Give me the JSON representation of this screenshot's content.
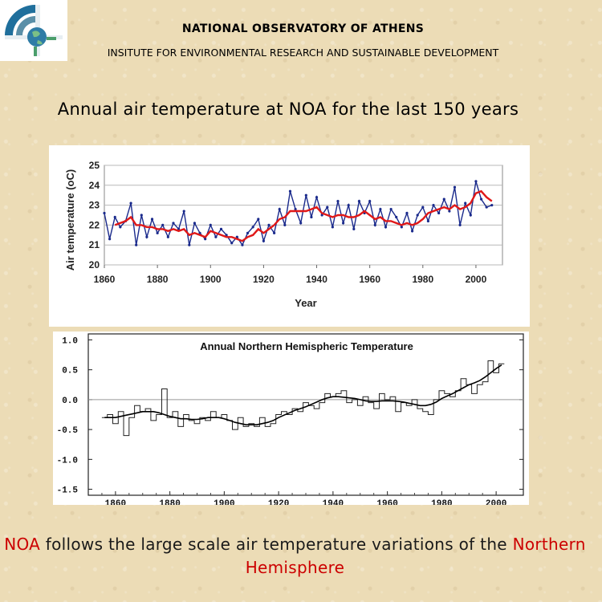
{
  "header": {
    "org": "NATIONAL OBSERVATORY OF ATHENS",
    "institute": "INSITUTE FOR ENVIRONMENTAL RESEARCH AND SUSTAINABLE DEVELOPMENT"
  },
  "slide_title": "Annual air temperature at NOA for the last 150 years",
  "caption": {
    "part1": "NOA",
    "part2": " follows the large scale air temperature variations of the ",
    "part3": "Northern Hemisphere"
  },
  "colors": {
    "noa_raw": "#1a2a8c",
    "noa_smooth": "#e01818",
    "accent_red": "#cc0000",
    "logo_blue": "#1f6f9c",
    "logo_green": "#4a9e6b"
  },
  "chart_data": [
    {
      "type": "line",
      "title": "",
      "xlabel": "Year",
      "ylabel": "Air temperature (oC)",
      "xlim": [
        1860,
        2010
      ],
      "ylim": [
        20,
        25
      ],
      "x_ticks": [
        "1860",
        "1880",
        "1900",
        "1920",
        "1940",
        "1960",
        "1980",
        "2000"
      ],
      "y_ticks": [
        "20",
        "21",
        "22",
        "23",
        "24",
        "25"
      ],
      "grid": true,
      "x": [
        1860,
        1862,
        1864,
        1866,
        1868,
        1870,
        1872,
        1874,
        1876,
        1878,
        1880,
        1882,
        1884,
        1886,
        1888,
        1890,
        1892,
        1894,
        1896,
        1898,
        1900,
        1902,
        1904,
        1906,
        1908,
        1910,
        1912,
        1914,
        1916,
        1918,
        1920,
        1922,
        1924,
        1926,
        1928,
        1930,
        1932,
        1934,
        1936,
        1938,
        1940,
        1942,
        1944,
        1946,
        1948,
        1950,
        1952,
        1954,
        1956,
        1958,
        1960,
        1962,
        1964,
        1966,
        1968,
        1970,
        1972,
        1974,
        1976,
        1978,
        1980,
        1982,
        1984,
        1986,
        1988,
        1990,
        1992,
        1994,
        1996,
        1998,
        2000,
        2002,
        2004,
        2006
      ],
      "series": [
        {
          "values": [
            22.6,
            21.3,
            22.4,
            21.9,
            22.2,
            23.1,
            21.0,
            22.5,
            21.4,
            22.3,
            21.6,
            22.0,
            21.4,
            22.1,
            21.8,
            22.7,
            21.0,
            22.1,
            21.6,
            21.3,
            22.0,
            21.4,
            21.8,
            21.5,
            21.1,
            21.4,
            21.0,
            21.6,
            21.9,
            22.3,
            21.2,
            22.0,
            21.6,
            22.8,
            22.0,
            23.7,
            22.8,
            22.1,
            23.5,
            22.4,
            23.4,
            22.5,
            22.9,
            21.9,
            23.2,
            22.1,
            23.0,
            21.8,
            23.2,
            22.6,
            23.2,
            22.0,
            22.8,
            21.9,
            22.8,
            22.4,
            21.9,
            22.6,
            21.7,
            22.5,
            22.9,
            22.2,
            23.0,
            22.6,
            23.3,
            22.7,
            23.9,
            22.0,
            23.1,
            22.5,
            24.2,
            23.3,
            22.9,
            23.0
          ]
        },
        {
          "values": [
            null,
            null,
            22.0,
            22.1,
            22.2,
            22.4,
            22.0,
            22.0,
            21.9,
            21.9,
            21.8,
            21.8,
            21.7,
            21.8,
            21.7,
            21.8,
            21.5,
            21.6,
            21.5,
            21.4,
            21.7,
            21.6,
            21.5,
            21.4,
            21.4,
            21.3,
            21.2,
            21.4,
            21.5,
            21.8,
            21.6,
            21.8,
            22.0,
            22.3,
            22.4,
            22.7,
            22.7,
            22.7,
            22.7,
            22.8,
            22.9,
            22.6,
            22.5,
            22.4,
            22.5,
            22.5,
            22.4,
            22.4,
            22.5,
            22.7,
            22.5,
            22.3,
            22.4,
            22.2,
            22.2,
            22.1,
            22.0,
            22.1,
            22.0,
            22.1,
            22.3,
            22.6,
            22.7,
            22.8,
            22.9,
            22.8,
            23.0,
            22.8,
            22.9,
            23.1,
            23.6,
            23.7,
            23.4,
            23.2
          ]
        }
      ]
    },
    {
      "type": "line",
      "title": "Annual Northern Hemispheric Temperature",
      "xlabel": "",
      "ylabel": "",
      "xlim": [
        1850,
        2010
      ],
      "ylim": [
        -1.6,
        1.1
      ],
      "x_ticks": [
        "1860",
        "1880",
        "1900",
        "1920",
        "1940",
        "1960",
        "1980",
        "2000"
      ],
      "y_ticks": [
        "1.0",
        "0.5",
        "0.0",
        "-0.5",
        "-1.0",
        "-1.5"
      ],
      "zero_line": true,
      "x": [
        1856,
        1858,
        1860,
        1862,
        1864,
        1866,
        1868,
        1870,
        1872,
        1874,
        1876,
        1878,
        1880,
        1882,
        1884,
        1886,
        1888,
        1890,
        1892,
        1894,
        1896,
        1898,
        1900,
        1902,
        1904,
        1906,
        1908,
        1910,
        1912,
        1914,
        1916,
        1918,
        1920,
        1922,
        1924,
        1926,
        1928,
        1930,
        1932,
        1934,
        1936,
        1938,
        1940,
        1942,
        1944,
        1946,
        1948,
        1950,
        1952,
        1954,
        1956,
        1958,
        1960,
        1962,
        1964,
        1966,
        1968,
        1970,
        1972,
        1974,
        1976,
        1978,
        1980,
        1982,
        1984,
        1986,
        1988,
        1990,
        1992,
        1994,
        1996,
        1998,
        2000,
        2002
      ],
      "series": [
        {
          "values": [
            -0.3,
            -0.25,
            -0.4,
            -0.2,
            -0.6,
            -0.3,
            -0.1,
            -0.2,
            -0.15,
            -0.35,
            -0.25,
            0.18,
            -0.3,
            -0.2,
            -0.45,
            -0.25,
            -0.35,
            -0.4,
            -0.3,
            -0.35,
            -0.2,
            -0.3,
            -0.25,
            -0.35,
            -0.5,
            -0.3,
            -0.45,
            -0.4,
            -0.45,
            -0.3,
            -0.45,
            -0.4,
            -0.25,
            -0.2,
            -0.25,
            -0.15,
            -0.2,
            -0.05,
            -0.1,
            -0.15,
            -0.05,
            0.1,
            0.05,
            0.1,
            0.15,
            -0.05,
            0.0,
            -0.1,
            0.05,
            -0.05,
            -0.15,
            0.1,
            0.0,
            0.05,
            -0.2,
            -0.05,
            -0.1,
            0.0,
            -0.15,
            -0.2,
            -0.25,
            0.0,
            0.15,
            0.1,
            0.05,
            0.15,
            0.35,
            0.25,
            0.1,
            0.25,
            0.3,
            0.65,
            0.45,
            0.6
          ]
        },
        {
          "values": [
            -0.3,
            -0.3,
            -0.3,
            -0.28,
            -0.26,
            -0.24,
            -0.22,
            -0.2,
            -0.2,
            -0.2,
            -0.22,
            -0.25,
            -0.28,
            -0.3,
            -0.32,
            -0.32,
            -0.33,
            -0.33,
            -0.32,
            -0.3,
            -0.3,
            -0.3,
            -0.32,
            -0.35,
            -0.38,
            -0.4,
            -0.42,
            -0.42,
            -0.42,
            -0.4,
            -0.38,
            -0.35,
            -0.3,
            -0.26,
            -0.22,
            -0.18,
            -0.15,
            -0.12,
            -0.08,
            -0.04,
            0.0,
            0.03,
            0.05,
            0.05,
            0.04,
            0.03,
            0.02,
            0.0,
            -0.02,
            -0.03,
            -0.03,
            -0.02,
            -0.02,
            -0.02,
            -0.03,
            -0.04,
            -0.06,
            -0.08,
            -0.1,
            -0.1,
            -0.08,
            -0.04,
            0.02,
            0.06,
            0.1,
            0.15,
            0.2,
            0.25,
            0.28,
            0.32,
            0.38,
            0.45,
            0.52,
            0.58
          ]
        }
      ]
    }
  ]
}
